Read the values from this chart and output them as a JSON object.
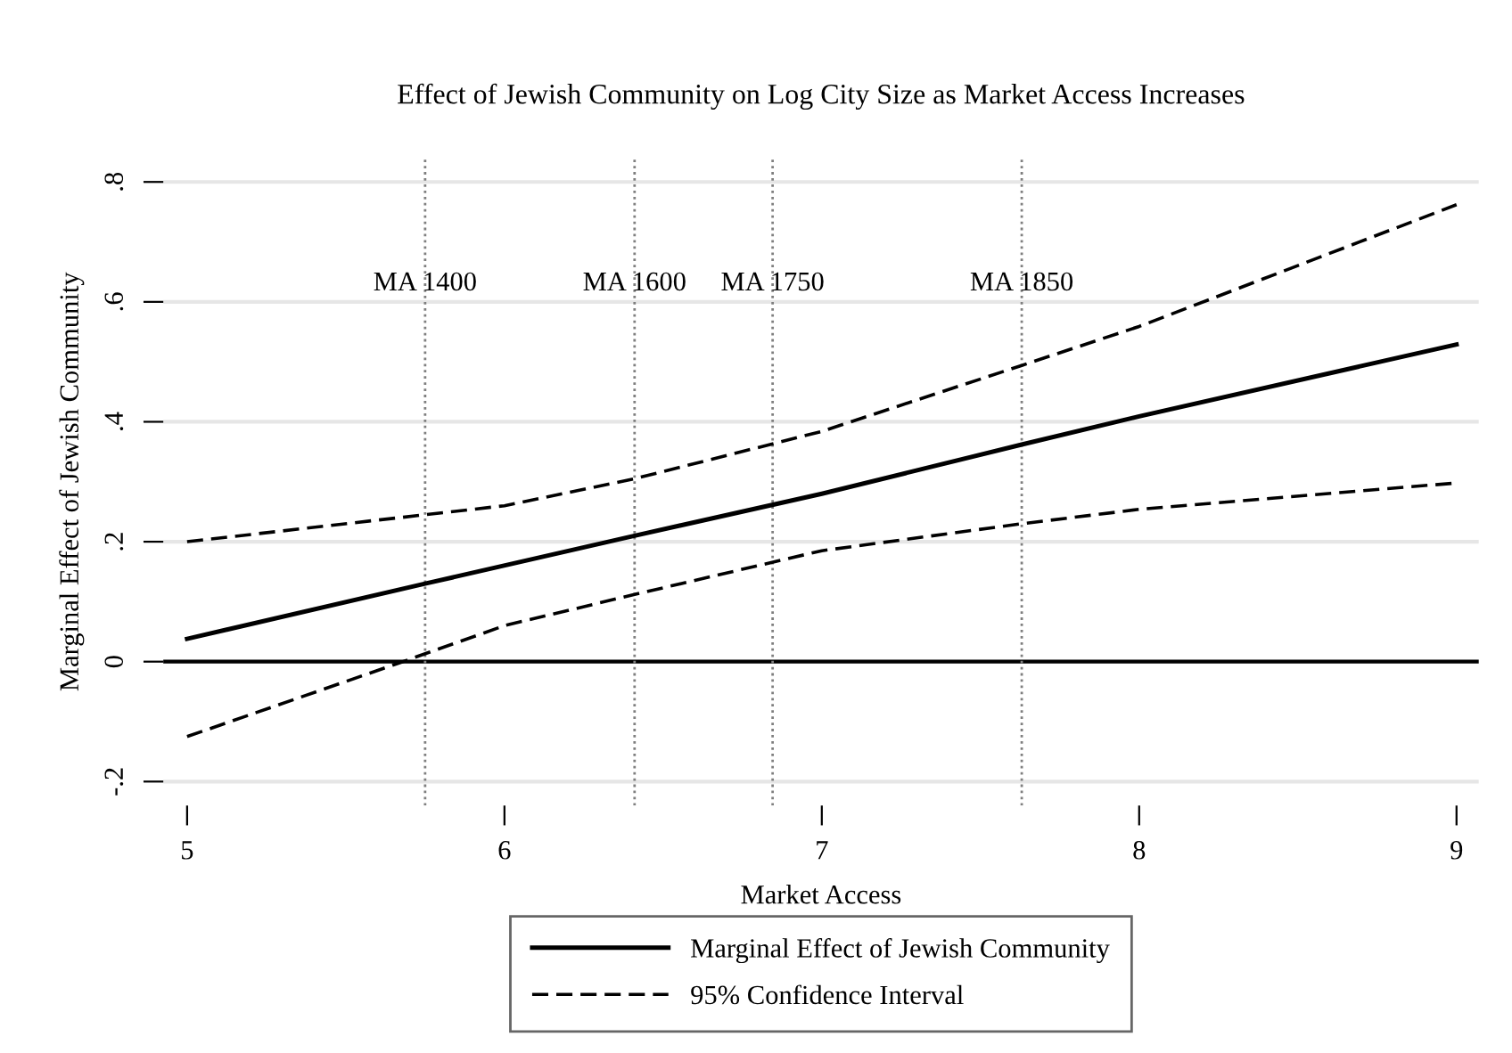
{
  "chart_data": {
    "type": "line",
    "title": "Effect of Jewish Community on Log City Size as Market Access Increases",
    "xlabel": "Market Access",
    "ylabel": "Marginal Effect of Jewish Community",
    "series": [
      {
        "name": "Marginal Effect of Jewish Community",
        "color": "#000000",
        "line_style": "solid",
        "x": [
          5,
          5.75,
          6.41,
          7,
          7.63,
          8,
          9
        ],
        "values": [
          0.038,
          0.13,
          0.21,
          0.28,
          0.362,
          0.409,
          0.529
        ]
      },
      {
        "name": "95% Confidence Interval",
        "color": "#000000",
        "line_style": "dashed",
        "x": [
          5,
          5.75,
          6,
          6.41,
          7,
          7.63,
          8,
          9
        ],
        "values": [
          0.2,
          0.245,
          0.26,
          0.305,
          0.384,
          0.494,
          0.559,
          0.762
        ]
      },
      {
        "color": "#000000",
        "line_style": "dashed",
        "x": [
          5,
          5.68,
          6,
          6.41,
          7,
          7.63,
          8,
          9
        ],
        "values": [
          -0.125,
          0,
          0.06,
          0.112,
          0.185,
          0.23,
          0.254,
          0.298
        ]
      }
    ],
    "ref_lines": [
      {
        "axis": "y",
        "value": 0,
        "color": "#000000",
        "line_style": "solid"
      },
      {
        "axis": "x",
        "value": 5.75,
        "label": "MA 1400",
        "color": "#7f7f7f",
        "line_style": "dotted"
      },
      {
        "axis": "x",
        "value": 6.41,
        "label": "MA 1600",
        "color": "#7f7f7f",
        "line_style": "dotted"
      },
      {
        "axis": "x",
        "value": 6.845,
        "label": "MA 1750",
        "color": "#7f7f7f",
        "line_style": "dotted"
      },
      {
        "axis": "x",
        "value": 7.63,
        "label": "MA 1850",
        "color": "#7f7f7f",
        "line_style": "dotted"
      }
    ],
    "xlim": [
      4.925,
      9.07
    ],
    "ylim": [
      -0.24,
      0.84
    ],
    "xticks": [
      5,
      6,
      7,
      8,
      9
    ],
    "yticks": [
      {
        "value": -0.2,
        "label": "-.2"
      },
      {
        "value": 0,
        "label": "0"
      },
      {
        "value": 0.2,
        "label": ".2"
      },
      {
        "value": 0.4,
        "label": ".4"
      },
      {
        "value": 0.6,
        "label": ".6"
      },
      {
        "value": 0.8,
        "label": ".8"
      }
    ],
    "grid": "y",
    "legend": "bottom",
    "marker": "none"
  }
}
